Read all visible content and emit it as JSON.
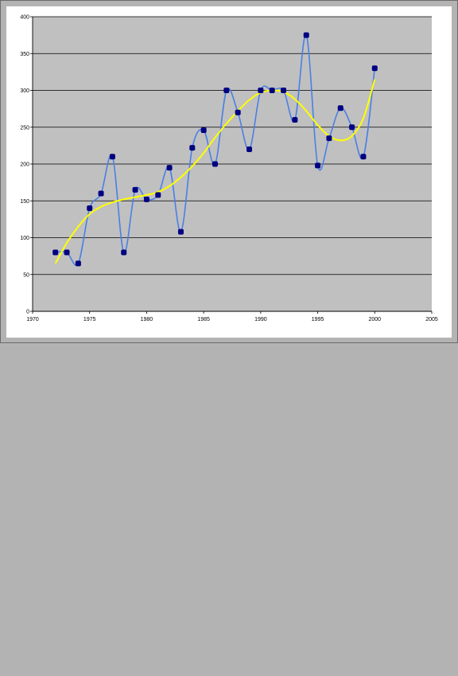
{
  "chart_data": {
    "type": "line",
    "title": "",
    "xlabel": "",
    "ylabel": "",
    "xlim": [
      1970,
      2005
    ],
    "ylim": [
      0,
      400
    ],
    "x_ticks": [
      1970,
      1975,
      1980,
      1985,
      1990,
      1995,
      2000,
      2005
    ],
    "y_ticks": [
      0,
      50,
      100,
      150,
      200,
      250,
      300,
      350,
      400
    ],
    "grid": "horizontal",
    "legend": "none",
    "plot_background": "#c0c0c0",
    "series": [
      {
        "color": "#4a7fe6",
        "marker_color": "#000080",
        "smooth": true,
        "points": [
          [
            1972,
            80
          ],
          [
            1973,
            80
          ],
          [
            1974,
            65
          ],
          [
            1975,
            140
          ],
          [
            1976,
            160
          ],
          [
            1977,
            210
          ],
          [
            1978,
            80
          ],
          [
            1979,
            165
          ],
          [
            1980,
            152
          ],
          [
            1981,
            158
          ],
          [
            1982,
            195
          ],
          [
            1983,
            108
          ],
          [
            1984,
            222
          ],
          [
            1985,
            246
          ],
          [
            1986,
            200
          ],
          [
            1987,
            300
          ],
          [
            1988,
            270
          ],
          [
            1989,
            220
          ],
          [
            1990,
            300
          ],
          [
            1991,
            300
          ],
          [
            1992,
            300
          ],
          [
            1993,
            260
          ],
          [
            1994,
            375
          ],
          [
            1995,
            198
          ],
          [
            1996,
            235
          ],
          [
            1997,
            276
          ],
          [
            1998,
            250
          ],
          [
            1999,
            210
          ],
          [
            2000,
            330
          ]
        ]
      },
      {
        "color": "#ffff00",
        "type": "trendline",
        "points": [
          [
            1972,
            65
          ],
          [
            1973,
            93
          ],
          [
            1974,
            115
          ],
          [
            1975,
            132
          ],
          [
            1976,
            142
          ],
          [
            1977,
            148
          ],
          [
            1978,
            152
          ],
          [
            1979,
            155
          ],
          [
            1980,
            158
          ],
          [
            1981,
            162
          ],
          [
            1982,
            170
          ],
          [
            1983,
            182
          ],
          [
            1984,
            197
          ],
          [
            1985,
            215
          ],
          [
            1986,
            236
          ],
          [
            1987,
            255
          ],
          [
            1988,
            272
          ],
          [
            1989,
            287
          ],
          [
            1990,
            297
          ],
          [
            1991,
            300
          ],
          [
            1992,
            298
          ],
          [
            1993,
            288
          ],
          [
            1994,
            272
          ],
          [
            1995,
            253
          ],
          [
            1996,
            238
          ],
          [
            1997,
            232
          ],
          [
            1998,
            238
          ],
          [
            1999,
            262
          ],
          [
            2000,
            315
          ]
        ]
      }
    ]
  }
}
